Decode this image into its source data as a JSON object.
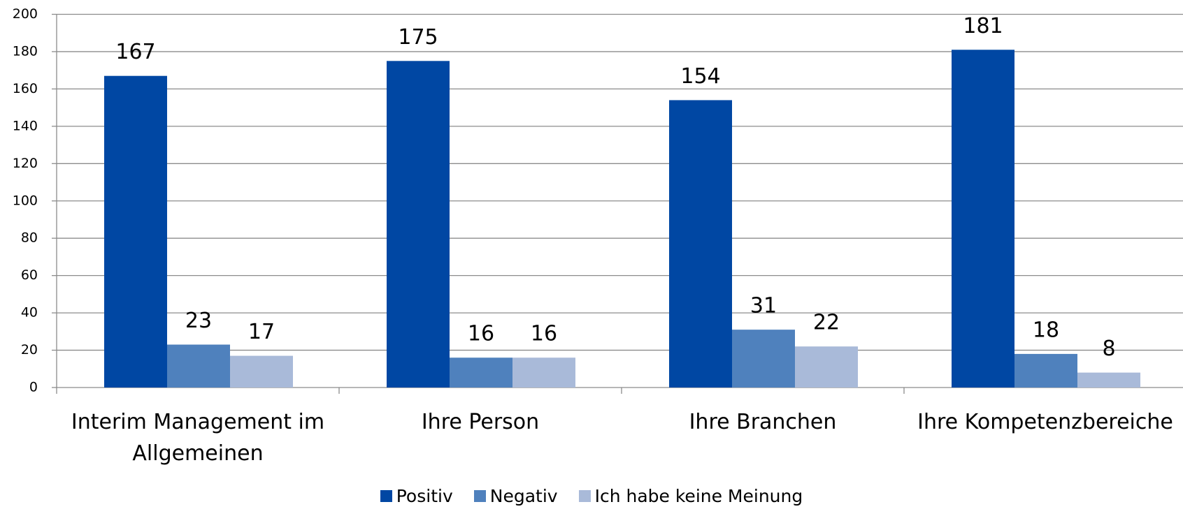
{
  "chart_data": {
    "type": "bar",
    "categories": [
      "Interim Management im Allgemeinen",
      "Ihre Person",
      "Ihre Branchen",
      "Ihre Kompetenzbereiche"
    ],
    "series": [
      {
        "name": "Positiv",
        "color": "#0047a3",
        "values": [
          167,
          175,
          154,
          181
        ]
      },
      {
        "name": "Negativ",
        "color": "#4f81bd",
        "values": [
          23,
          16,
          31,
          18
        ]
      },
      {
        "name": "Ich habe keine Meinung",
        "color": "#a9bad9",
        "values": [
          17,
          16,
          22,
          8
        ]
      }
    ],
    "ylim": [
      0,
      200
    ],
    "yticks": [
      0,
      20,
      40,
      60,
      80,
      100,
      120,
      140,
      160,
      180,
      200
    ],
    "grid": true,
    "legend": "bottom"
  }
}
